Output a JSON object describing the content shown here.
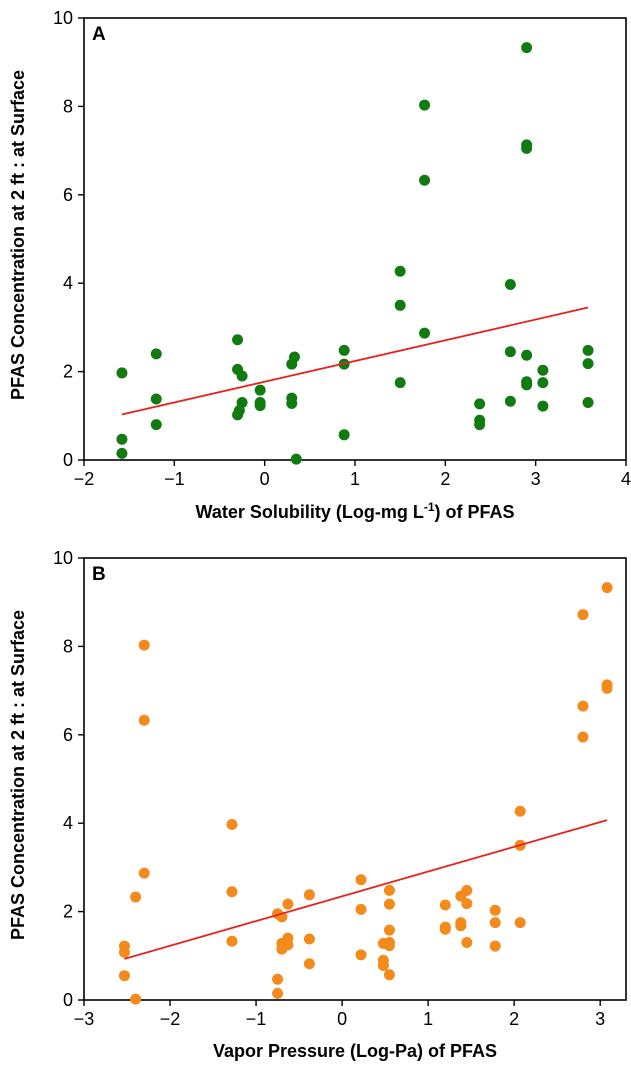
{
  "chart_data": [
    {
      "type": "scatter",
      "panel_label": "A",
      "xlabel_main": "Water Solubility (Log-mg L",
      "xlabel_sup": "-1",
      "xlabel_end": ") of PFAS",
      "ylabel": "PFAS Concentration at 2 ft : at Surface",
      "xlim": [
        -2,
        4
      ],
      "ylim": [
        0,
        10
      ],
      "xticks": [
        "−2",
        "−1",
        "0",
        "1",
        "2",
        "3",
        "4"
      ],
      "xtick_values": [
        -2,
        -1,
        0,
        1,
        2,
        3,
        4
      ],
      "yticks": [
        "0",
        "2",
        "4",
        "6",
        "8",
        "10"
      ],
      "ytick_values": [
        0,
        2,
        4,
        6,
        8,
        10
      ],
      "grid": false,
      "point_color": "#117a11",
      "fit_line_color": "#e8221c",
      "series": [
        {
          "points": [
            [
              -1.58,
              1.97
            ],
            [
              -1.58,
              0.47
            ],
            [
              -1.58,
              0.15
            ],
            [
              -1.2,
              2.4
            ],
            [
              -1.2,
              1.38
            ],
            [
              -1.2,
              0.8
            ],
            [
              -0.3,
              2.72
            ],
            [
              -0.3,
              2.05
            ],
            [
              -0.25,
              1.9
            ],
            [
              -0.25,
              1.3
            ],
            [
              -0.28,
              1.12
            ],
            [
              -0.3,
              1.02
            ],
            [
              -0.05,
              1.58
            ],
            [
              -0.05,
              1.3
            ],
            [
              -0.05,
              1.23
            ],
            [
              0.33,
              2.33
            ],
            [
              0.3,
              2.17
            ],
            [
              0.3,
              1.4
            ],
            [
              0.3,
              1.28
            ],
            [
              0.35,
              0.02
            ],
            [
              0.88,
              2.48
            ],
            [
              0.88,
              2.17
            ],
            [
              0.88,
              0.57
            ],
            [
              1.5,
              4.27
            ],
            [
              1.5,
              3.5
            ],
            [
              1.5,
              1.75
            ],
            [
              1.77,
              8.03
            ],
            [
              1.77,
              6.33
            ],
            [
              1.77,
              2.87
            ],
            [
              2.38,
              1.27
            ],
            [
              2.38,
              0.9
            ],
            [
              2.38,
              0.8
            ],
            [
              2.72,
              3.97
            ],
            [
              2.72,
              2.45
            ],
            [
              2.72,
              1.33
            ],
            [
              2.9,
              9.33
            ],
            [
              2.9,
              7.13
            ],
            [
              2.9,
              7.05
            ],
            [
              2.9,
              2.37
            ],
            [
              2.9,
              1.77
            ],
            [
              2.9,
              1.7
            ],
            [
              3.08,
              2.03
            ],
            [
              3.08,
              1.75
            ],
            [
              3.08,
              1.22
            ],
            [
              3.58,
              2.48
            ],
            [
              3.58,
              2.18
            ],
            [
              3.58,
              1.3
            ]
          ]
        }
      ],
      "fit_line": {
        "x": [
          -1.58,
          3.58
        ],
        "y": [
          1.03,
          3.45
        ]
      }
    },
    {
      "type": "scatter",
      "panel_label": "B",
      "xlabel": "Vapor Pressure (Log-Pa) of PFAS",
      "ylabel": "PFAS Concentration at 2 ft : at Surface",
      "xlim": [
        -3,
        3.3
      ],
      "ylim": [
        0,
        10
      ],
      "xticks": [
        "−3",
        "−2",
        "−1",
        "0",
        "1",
        "2",
        "3"
      ],
      "xtick_values": [
        -3,
        -2,
        -1,
        0,
        1,
        2,
        3
      ],
      "yticks": [
        "0",
        "2",
        "4",
        "6",
        "8",
        "10"
      ],
      "ytick_values": [
        0,
        2,
        4,
        6,
        8,
        10
      ],
      "grid": false,
      "point_color": "#f28a1c",
      "fit_line_color": "#e8221c",
      "series": [
        {
          "points": [
            [
              -2.53,
              1.22
            ],
            [
              -2.53,
              1.08
            ],
            [
              -2.53,
              0.55
            ],
            [
              -2.4,
              2.33
            ],
            [
              -2.4,
              0.02
            ],
            [
              -2.3,
              8.03
            ],
            [
              -2.3,
              6.33
            ],
            [
              -2.3,
              2.87
            ],
            [
              -1.28,
              3.97
            ],
            [
              -1.28,
              2.45
            ],
            [
              -1.28,
              1.33
            ],
            [
              -0.75,
              1.95
            ],
            [
              -0.75,
              0.47
            ],
            [
              -0.75,
              0.15
            ],
            [
              -0.7,
              1.88
            ],
            [
              -0.7,
              1.28
            ],
            [
              -0.7,
              1.15
            ],
            [
              -0.63,
              2.17
            ],
            [
              -0.63,
              1.4
            ],
            [
              -0.63,
              1.25
            ],
            [
              -0.38,
              2.38
            ],
            [
              -0.38,
              1.38
            ],
            [
              -0.38,
              0.82
            ],
            [
              0.22,
              2.72
            ],
            [
              0.22,
              2.05
            ],
            [
              0.22,
              1.02
            ],
            [
              0.48,
              1.28
            ],
            [
              0.48,
              0.9
            ],
            [
              0.48,
              0.78
            ],
            [
              0.55,
              2.48
            ],
            [
              0.55,
              2.17
            ],
            [
              0.55,
              1.58
            ],
            [
              0.55,
              1.3
            ],
            [
              0.55,
              1.23
            ],
            [
              0.55,
              0.57
            ],
            [
              1.2,
              2.15
            ],
            [
              1.2,
              1.65
            ],
            [
              1.2,
              1.6
            ],
            [
              1.38,
              2.35
            ],
            [
              1.38,
              1.75
            ],
            [
              1.38,
              1.68
            ],
            [
              1.45,
              2.48
            ],
            [
              1.45,
              2.18
            ],
            [
              1.45,
              1.3
            ],
            [
              1.78,
              2.03
            ],
            [
              1.78,
              1.75
            ],
            [
              1.78,
              1.22
            ],
            [
              2.07,
              4.27
            ],
            [
              2.07,
              3.5
            ],
            [
              2.07,
              1.75
            ],
            [
              2.8,
              8.72
            ],
            [
              2.8,
              6.65
            ],
            [
              2.8,
              5.95
            ],
            [
              3.08,
              9.33
            ],
            [
              3.08,
              7.13
            ],
            [
              3.08,
              7.05
            ]
          ]
        }
      ],
      "fit_line": {
        "x": [
          -2.53,
          3.08
        ],
        "y": [
          0.93,
          4.07
        ]
      }
    }
  ]
}
